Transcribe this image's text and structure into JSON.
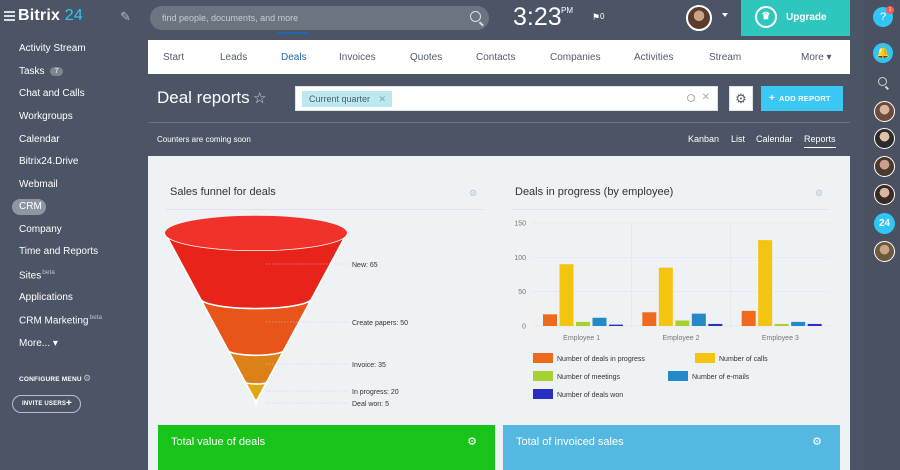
{
  "header": {
    "logo_main": "Bitrix",
    "logo_num": "24",
    "search_placeholder": "find people, documents, and more",
    "time": "3:23",
    "ampm": "PM",
    "flag_count": "0",
    "upgrade_label": "Upgrade"
  },
  "sidebar": {
    "items": [
      {
        "label": "Activity Stream"
      },
      {
        "label": "Tasks",
        "badge": "7"
      },
      {
        "label": "Chat and Calls"
      },
      {
        "label": "Workgroups"
      },
      {
        "label": "Calendar"
      },
      {
        "label": "Bitrix24.Drive"
      },
      {
        "label": "Webmail"
      },
      {
        "label": "CRM"
      },
      {
        "label": "Company"
      },
      {
        "label": "Time and Reports"
      },
      {
        "label": "Sites",
        "sup": "beta"
      },
      {
        "label": "Applications"
      },
      {
        "label": "CRM Marketing",
        "sup": "beta"
      },
      {
        "label": "More... ▾"
      }
    ],
    "configure_menu": "CONFIGURE MENU",
    "invite_users": "INVITE USERS"
  },
  "rail": {
    "help": "?",
    "help_badge": "1",
    "b24": "24"
  },
  "tabs": [
    "Start",
    "Leads",
    "Deals",
    "Invoices",
    "Quotes",
    "Contacts",
    "Companies",
    "Activities",
    "Stream",
    "More ▾"
  ],
  "active_tab": "Deals",
  "page": {
    "title": "Deal reports",
    "filter_chip": "Current quarter",
    "add_report": "ADD REPORT",
    "counters": "Counters are coming soon",
    "views": [
      "Kanban",
      "List",
      "Calendar",
      "Reports"
    ],
    "active_view": "Reports"
  },
  "widgets": {
    "funnel_title": "Sales funnel for deals",
    "progress_title": "Deals in progress (by employee)",
    "total_value_title": "Total value of deals",
    "total_invoiced_title": "Total of invoiced sales"
  },
  "colors": {
    "accent": "#2fc6f6",
    "upgrade": "#2fc7bd",
    "tab_active": "#2067b0",
    "card_green": "#19c41a",
    "card_blue": "#54b8e0"
  },
  "chart_data": [
    {
      "type": "funnel",
      "stages": [
        {
          "label": "New",
          "value": 65,
          "color": "#e8231a"
        },
        {
          "label": "Create papers",
          "value": 50,
          "color": "#e9541a"
        },
        {
          "label": "Invoice",
          "value": 35,
          "color": "#dc8018"
        },
        {
          "label": "In progress",
          "value": 20,
          "color": "#e0a715"
        },
        {
          "label": "Deal won",
          "value": 5,
          "color": "#c3c01a"
        }
      ]
    },
    {
      "type": "bar",
      "categories": [
        "Employee 1",
        "Employee 2",
        "Employee 3"
      ],
      "ylim": [
        0,
        150
      ],
      "yticks": [
        0,
        50,
        100,
        150
      ],
      "series": [
        {
          "name": "Number of deals in progress",
          "color": "#f06a1d",
          "values": [
            17,
            20,
            22
          ]
        },
        {
          "name": "Number of calls",
          "color": "#f3c511",
          "values": [
            90,
            85,
            125
          ]
        },
        {
          "name": "Number of meetings",
          "color": "#a8d032",
          "values": [
            6,
            8,
            3
          ]
        },
        {
          "name": "Number of e-mails",
          "color": "#2589c9",
          "values": [
            12,
            18,
            6
          ]
        },
        {
          "name": "Number of deals won",
          "color": "#2a2fc3",
          "values": [
            2,
            3,
            3
          ]
        }
      ],
      "grid": true,
      "legend": "bottom"
    }
  ]
}
